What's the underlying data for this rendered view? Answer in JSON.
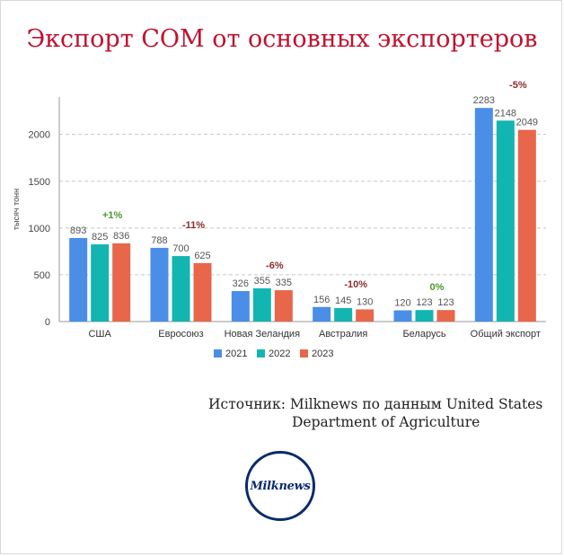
{
  "title": "Экспорт СОМ от основных экспортеров",
  "source": {
    "line1": "Источник: Milknews по данным United States",
    "line2": "Department of Agriculture"
  },
  "logo": {
    "text": "Milknews",
    "color": "#0a2b6b"
  },
  "chart_data": {
    "type": "bar",
    "ylabel": "тысяч тонн",
    "ylim": [
      0,
      2400
    ],
    "yticks": [
      0,
      500,
      1000,
      1500,
      2000
    ],
    "grid": true,
    "legend_position": "bottom-center",
    "categories": [
      "США",
      "Евросоюз",
      "Новая Зеландия",
      "Австралия",
      "Беларусь",
      "Общий экспорт"
    ],
    "series": [
      {
        "name": "2021",
        "color": "#4a8ee8",
        "values": [
          893,
          788,
          326,
          156,
          120,
          2283
        ]
      },
      {
        "name": "2022",
        "color": "#13b5b1",
        "values": [
          825,
          700,
          355,
          145,
          123,
          2148
        ]
      },
      {
        "name": "2023",
        "color": "#e8664a",
        "values": [
          836,
          625,
          335,
          130,
          123,
          2049
        ]
      }
    ],
    "annotations": [
      {
        "category": "США",
        "text": "+1%",
        "color": "#4c9a2a"
      },
      {
        "category": "Евросоюз",
        "text": "-11%",
        "color": "#8b2a2a"
      },
      {
        "category": "Новая Зеландия",
        "text": "-6%",
        "color": "#8b2a2a"
      },
      {
        "category": "Австралия",
        "text": "-10%",
        "color": "#8b2a2a"
      },
      {
        "category": "Беларусь",
        "text": "0%",
        "color": "#4c9a2a"
      },
      {
        "category": "Общий экспорт",
        "text": "-5%",
        "color": "#8b2a2a"
      }
    ]
  }
}
